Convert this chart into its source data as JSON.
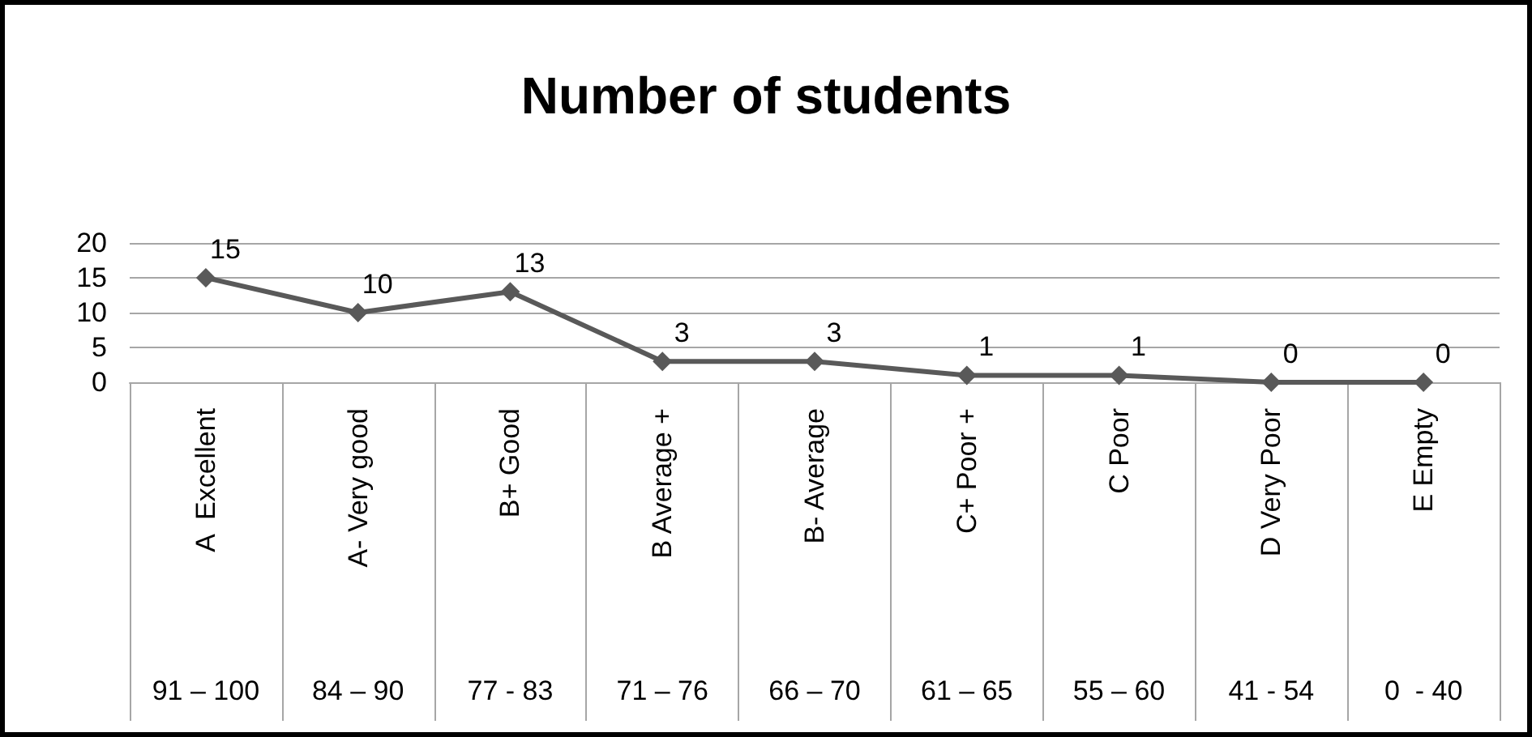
{
  "chart_data": {
    "type": "line",
    "title": "Number of students",
    "categories": [
      "91 – 100\nA  Excellent",
      "84 – 90\nA- Very good",
      "77 - 83\nB+ Good",
      "71 – 76\nB Average +",
      "66 – 70\nB- Average",
      "61 – 65\nC+ Poor +",
      "55 – 60\nC Poor",
      "41 - 54\nD Very Poor",
      "0  - 40\nE Empty"
    ],
    "series": [
      {
        "color": "#595959",
        "values": [
          15,
          10,
          13,
          3,
          3,
          1,
          1,
          0,
          0
        ]
      }
    ],
    "ylim": [
      0,
      20
    ],
    "yticks": [
      0,
      5,
      10,
      15,
      20
    ],
    "grid": "y",
    "marker": "diamond",
    "line_style": "solid",
    "data_labels": true
  }
}
